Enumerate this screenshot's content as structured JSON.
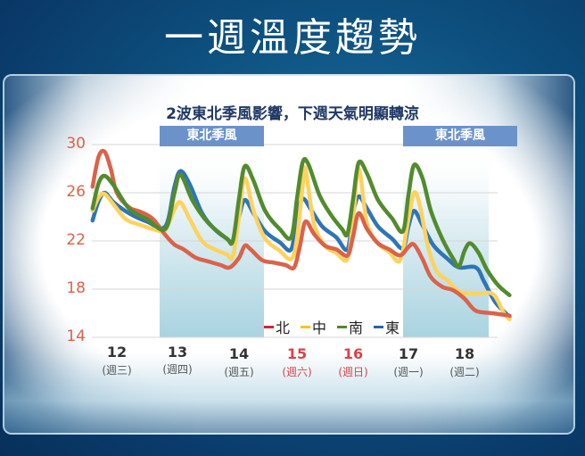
{
  "header": {
    "title": "一週溫度趨勢"
  },
  "chart_data": {
    "type": "line",
    "title": "2波東北季風影響，下週天氣明顯轉涼",
    "xlabel": "",
    "ylabel": "",
    "ylim": [
      14,
      30
    ],
    "yticks": [
      30,
      26,
      22,
      18,
      14
    ],
    "grid": true,
    "legend_position": "bottom-center inside plot",
    "categories": [
      {
        "day": "12",
        "dow": "(週三)",
        "weekend": false
      },
      {
        "day": "13",
        "dow": "(週四)",
        "weekend": false
      },
      {
        "day": "14",
        "dow": "(週五)",
        "weekend": false
      },
      {
        "day": "15",
        "dow": "(週六)",
        "weekend": true
      },
      {
        "day": "16",
        "dow": "(週日)",
        "weekend": true
      },
      {
        "day": "17",
        "dow": "(週一)",
        "weekend": false
      },
      {
        "day": "18",
        "dow": "(週二)",
        "weekend": false
      }
    ],
    "shaded_periods": [
      {
        "label": "東北季風",
        "from_day": "13",
        "to_day": "14"
      },
      {
        "label": "東北季風",
        "from_day": "17",
        "to_day": "18"
      }
    ],
    "x_index_note": "x = fractional day index: 0 = day 12 label, 1 = day 13, ... 6 = day 18",
    "series": [
      {
        "name": "北",
        "color": "#d9634a",
        "points": [
          [
            -0.4,
            26.5
          ],
          [
            -0.3,
            29.0
          ],
          [
            -0.2,
            29.4
          ],
          [
            -0.1,
            28.0
          ],
          [
            0.0,
            26.0
          ],
          [
            0.2,
            24.8
          ],
          [
            0.4,
            24.4
          ],
          [
            0.6,
            23.8
          ],
          [
            0.8,
            22.5
          ],
          [
            0.95,
            21.7
          ],
          [
            1.1,
            21.3
          ],
          [
            1.3,
            20.6
          ],
          [
            1.5,
            20.3
          ],
          [
            1.7,
            20.0
          ],
          [
            1.85,
            19.8
          ],
          [
            2.0,
            20.6
          ],
          [
            2.1,
            21.6
          ],
          [
            2.2,
            21.3
          ],
          [
            2.4,
            20.4
          ],
          [
            2.6,
            20.2
          ],
          [
            2.8,
            20.0
          ],
          [
            2.95,
            19.8
          ],
          [
            3.05,
            21.5
          ],
          [
            3.15,
            23.6
          ],
          [
            3.3,
            22.6
          ],
          [
            3.5,
            21.6
          ],
          [
            3.7,
            21.3
          ],
          [
            3.9,
            20.8
          ],
          [
            4.0,
            22.4
          ],
          [
            4.1,
            24.3
          ],
          [
            4.25,
            23.0
          ],
          [
            4.45,
            21.8
          ],
          [
            4.65,
            21.3
          ],
          [
            4.85,
            20.8
          ],
          [
            5.0,
            21.5
          ],
          [
            5.1,
            21.7
          ],
          [
            5.25,
            20.5
          ],
          [
            5.4,
            19.0
          ],
          [
            5.6,
            18.2
          ],
          [
            5.8,
            17.9
          ],
          [
            6.0,
            17.2
          ],
          [
            6.2,
            16.2
          ],
          [
            6.5,
            16.0
          ],
          [
            6.8,
            15.8
          ]
        ]
      },
      {
        "name": "中",
        "color": "#fdd25e",
        "points": [
          [
            -0.4,
            24.5
          ],
          [
            -0.3,
            25.6
          ],
          [
            -0.2,
            25.9
          ],
          [
            -0.05,
            25.0
          ],
          [
            0.15,
            23.8
          ],
          [
            0.4,
            23.3
          ],
          [
            0.65,
            22.9
          ],
          [
            0.8,
            22.9
          ],
          [
            0.95,
            24.6
          ],
          [
            1.05,
            25.2
          ],
          [
            1.2,
            23.8
          ],
          [
            1.4,
            22.0
          ],
          [
            1.6,
            21.3
          ],
          [
            1.8,
            20.9
          ],
          [
            1.9,
            20.7
          ],
          [
            2.0,
            24.0
          ],
          [
            2.1,
            27.2
          ],
          [
            2.25,
            24.5
          ],
          [
            2.45,
            22.2
          ],
          [
            2.7,
            21.2
          ],
          [
            2.9,
            20.5
          ],
          [
            3.0,
            22.2
          ],
          [
            3.1,
            26.5
          ],
          [
            3.15,
            28.0
          ],
          [
            3.3,
            23.5
          ],
          [
            3.5,
            21.6
          ],
          [
            3.7,
            21.0
          ],
          [
            3.9,
            20.5
          ],
          [
            4.0,
            23.8
          ],
          [
            4.1,
            28.0
          ],
          [
            4.25,
            23.5
          ],
          [
            4.45,
            21.8
          ],
          [
            4.65,
            21.1
          ],
          [
            4.85,
            20.4
          ],
          [
            5.0,
            23.8
          ],
          [
            5.1,
            26.0
          ],
          [
            5.2,
            25.0
          ],
          [
            5.35,
            21.5
          ],
          [
            5.5,
            19.5
          ],
          [
            5.7,
            18.7
          ],
          [
            5.9,
            17.8
          ],
          [
            6.2,
            17.6
          ],
          [
            6.5,
            17.6
          ],
          [
            6.7,
            16.0
          ],
          [
            6.8,
            15.5
          ]
        ]
      },
      {
        "name": "南",
        "color": "#528b2e",
        "points": [
          [
            -0.4,
            24.7
          ],
          [
            -0.3,
            26.8
          ],
          [
            -0.2,
            27.4
          ],
          [
            -0.05,
            26.6
          ],
          [
            0.2,
            24.7
          ],
          [
            0.5,
            23.8
          ],
          [
            0.8,
            23.0
          ],
          [
            0.95,
            26.0
          ],
          [
            1.05,
            27.5
          ],
          [
            1.25,
            25.3
          ],
          [
            1.5,
            23.5
          ],
          [
            1.8,
            22.2
          ],
          [
            1.9,
            22.0
          ],
          [
            2.0,
            25.5
          ],
          [
            2.1,
            28.2
          ],
          [
            2.25,
            27.0
          ],
          [
            2.45,
            24.5
          ],
          [
            2.7,
            23.0
          ],
          [
            2.9,
            22.3
          ],
          [
            3.0,
            25.5
          ],
          [
            3.1,
            28.5
          ],
          [
            3.2,
            28.4
          ],
          [
            3.4,
            25.8
          ],
          [
            3.6,
            24.2
          ],
          [
            3.8,
            23.0
          ],
          [
            3.9,
            22.6
          ],
          [
            4.0,
            25.5
          ],
          [
            4.1,
            28.5
          ],
          [
            4.25,
            27.6
          ],
          [
            4.45,
            25.4
          ],
          [
            4.7,
            23.9
          ],
          [
            4.9,
            22.8
          ],
          [
            5.0,
            25.8
          ],
          [
            5.1,
            28.3
          ],
          [
            5.25,
            27.2
          ],
          [
            5.4,
            24.5
          ],
          [
            5.6,
            22.2
          ],
          [
            5.8,
            20.5
          ],
          [
            5.9,
            19.9
          ],
          [
            6.0,
            21.2
          ],
          [
            6.1,
            21.8
          ],
          [
            6.25,
            21.0
          ],
          [
            6.4,
            19.6
          ],
          [
            6.6,
            18.3
          ],
          [
            6.8,
            17.5
          ]
        ]
      },
      {
        "name": "東",
        "color": "#2e75b6",
        "points": [
          [
            -0.4,
            23.7
          ],
          [
            -0.3,
            25.3
          ],
          [
            -0.2,
            26.0
          ],
          [
            -0.05,
            25.2
          ],
          [
            0.2,
            24.3
          ],
          [
            0.5,
            23.6
          ],
          [
            0.8,
            23.2
          ],
          [
            0.95,
            26.5
          ],
          [
            1.05,
            27.8
          ],
          [
            1.2,
            26.7
          ],
          [
            1.4,
            24.3
          ],
          [
            1.6,
            23.0
          ],
          [
            1.8,
            22.2
          ],
          [
            1.9,
            22.0
          ],
          [
            2.0,
            24.0
          ],
          [
            2.1,
            25.4
          ],
          [
            2.25,
            24.3
          ],
          [
            2.45,
            22.8
          ],
          [
            2.7,
            21.9
          ],
          [
            2.9,
            21.3
          ],
          [
            3.0,
            24.0
          ],
          [
            3.1,
            25.5
          ],
          [
            3.25,
            24.6
          ],
          [
            3.45,
            23.2
          ],
          [
            3.7,
            22.3
          ],
          [
            3.9,
            21.3
          ],
          [
            4.0,
            24.3
          ],
          [
            4.1,
            25.7
          ],
          [
            4.25,
            24.7
          ],
          [
            4.45,
            23.2
          ],
          [
            4.7,
            22.2
          ],
          [
            4.9,
            21.4
          ],
          [
            5.0,
            23.2
          ],
          [
            5.1,
            24.5
          ],
          [
            5.25,
            23.3
          ],
          [
            5.45,
            21.6
          ],
          [
            5.7,
            20.5
          ],
          [
            5.9,
            19.8
          ],
          [
            6.2,
            19.8
          ],
          [
            6.35,
            18.6
          ],
          [
            6.55,
            16.9
          ],
          [
            6.8,
            15.7
          ]
        ]
      }
    ]
  },
  "bands": [
    {
      "label": "東北季風"
    },
    {
      "label": "東北季風"
    }
  ],
  "legend": [
    {
      "label": "北",
      "color": "#d9634a"
    },
    {
      "label": "中",
      "color": "#fdd25e"
    },
    {
      "label": "南",
      "color": "#528b2e"
    },
    {
      "label": "東",
      "color": "#2e75b6"
    }
  ],
  "y_axis": {
    "ticks": [
      "30",
      "26",
      "22",
      "18",
      "14"
    ],
    "color": "#d9634a"
  },
  "x_axis": {
    "days": [
      {
        "day": "12",
        "dow": "(週三)"
      },
      {
        "day": "13",
        "dow": "(週四)"
      },
      {
        "day": "14",
        "dow": "(週五)"
      },
      {
        "day": "15",
        "dow": "(週六)"
      },
      {
        "day": "16",
        "dow": "(週日)"
      },
      {
        "day": "17",
        "dow": "(週一)"
      },
      {
        "day": "18",
        "dow": "(週二)"
      }
    ]
  }
}
